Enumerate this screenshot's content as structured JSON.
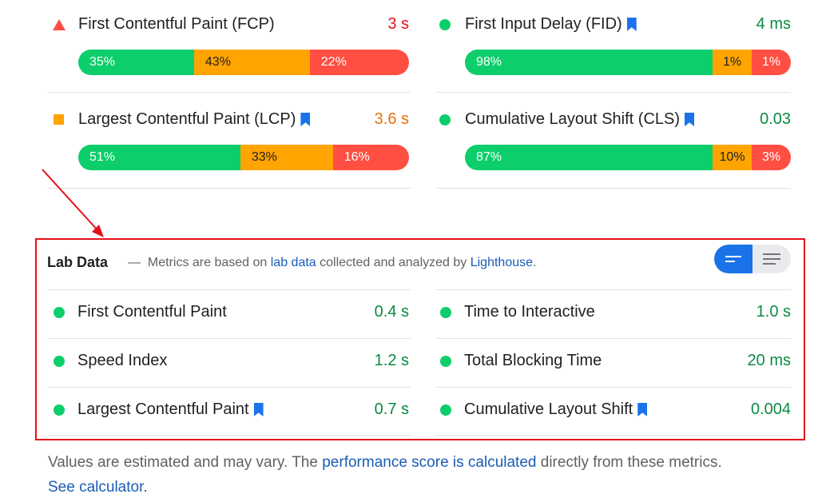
{
  "colors": {
    "good": "#0cce6b",
    "average": "#ffa400",
    "poor": "#ff4e42",
    "good_text": "#0a8a43",
    "average_text": "#e8710a",
    "poor_text": "#e3101a",
    "link": "#1a5cb5",
    "annotation_red": "#e3101a"
  },
  "field_metrics": [
    {
      "id": "fcp",
      "title": "First Contentful Paint (FCP)",
      "icon": "triangle-icon",
      "bookmark": false,
      "value": "3 s",
      "status": "poor",
      "distribution": [
        {
          "label": "35%",
          "pct": 35
        },
        {
          "label": "43%",
          "pct": 43
        },
        {
          "label": "22%",
          "pct": 22
        }
      ]
    },
    {
      "id": "fid",
      "title": "First Input Delay (FID)",
      "icon": "circle-icon",
      "bookmark": true,
      "value": "4 ms",
      "status": "good",
      "distribution": [
        {
          "label": "98%",
          "pct": 98
        },
        {
          "label": "1%",
          "pct": 1
        },
        {
          "label": "1%",
          "pct": 1
        }
      ]
    },
    {
      "id": "lcp",
      "title": "Largest Contentful Paint (LCP)",
      "icon": "square-icon",
      "bookmark": true,
      "value": "3.6 s",
      "status": "average",
      "distribution": [
        {
          "label": "51%",
          "pct": 51
        },
        {
          "label": "33%",
          "pct": 33
        },
        {
          "label": "16%",
          "pct": 16
        }
      ]
    },
    {
      "id": "cls",
      "title": "Cumulative Layout Shift (CLS)",
      "icon": "circle-icon",
      "bookmark": true,
      "value": "0.03",
      "status": "good",
      "distribution": [
        {
          "label": "87%",
          "pct": 87
        },
        {
          "label": "10%",
          "pct": 10
        },
        {
          "label": "3%",
          "pct": 3
        }
      ]
    }
  ],
  "lab": {
    "title": "Lab Data",
    "desc_dash": "—",
    "desc_part1": "Metrics are based on",
    "desc_link1": "lab data",
    "desc_part2": "collected and analyzed by",
    "desc_link2": "Lighthouse",
    "desc_end": ".",
    "metrics": [
      {
        "name": "First Contentful Paint",
        "value": "0.4 s",
        "bookmark": false
      },
      {
        "name": "Time to Interactive",
        "value": "1.0 s",
        "bookmark": false
      },
      {
        "name": "Speed Index",
        "value": "1.2 s",
        "bookmark": false
      },
      {
        "name": "Total Blocking Time",
        "value": "20 ms",
        "bookmark": false
      },
      {
        "name": "Largest Contentful Paint",
        "value": "0.7 s",
        "bookmark": true
      },
      {
        "name": "Cumulative Layout Shift",
        "value": "0.004",
        "bookmark": true
      }
    ]
  },
  "view_toggle": {
    "selected": "summary",
    "options": [
      "summary",
      "list"
    ]
  },
  "footer": {
    "part1": "Values are estimated and may vary. The",
    "link1": "performance score is calculated",
    "part2": "directly from these metrics.",
    "link2": "See calculator."
  }
}
